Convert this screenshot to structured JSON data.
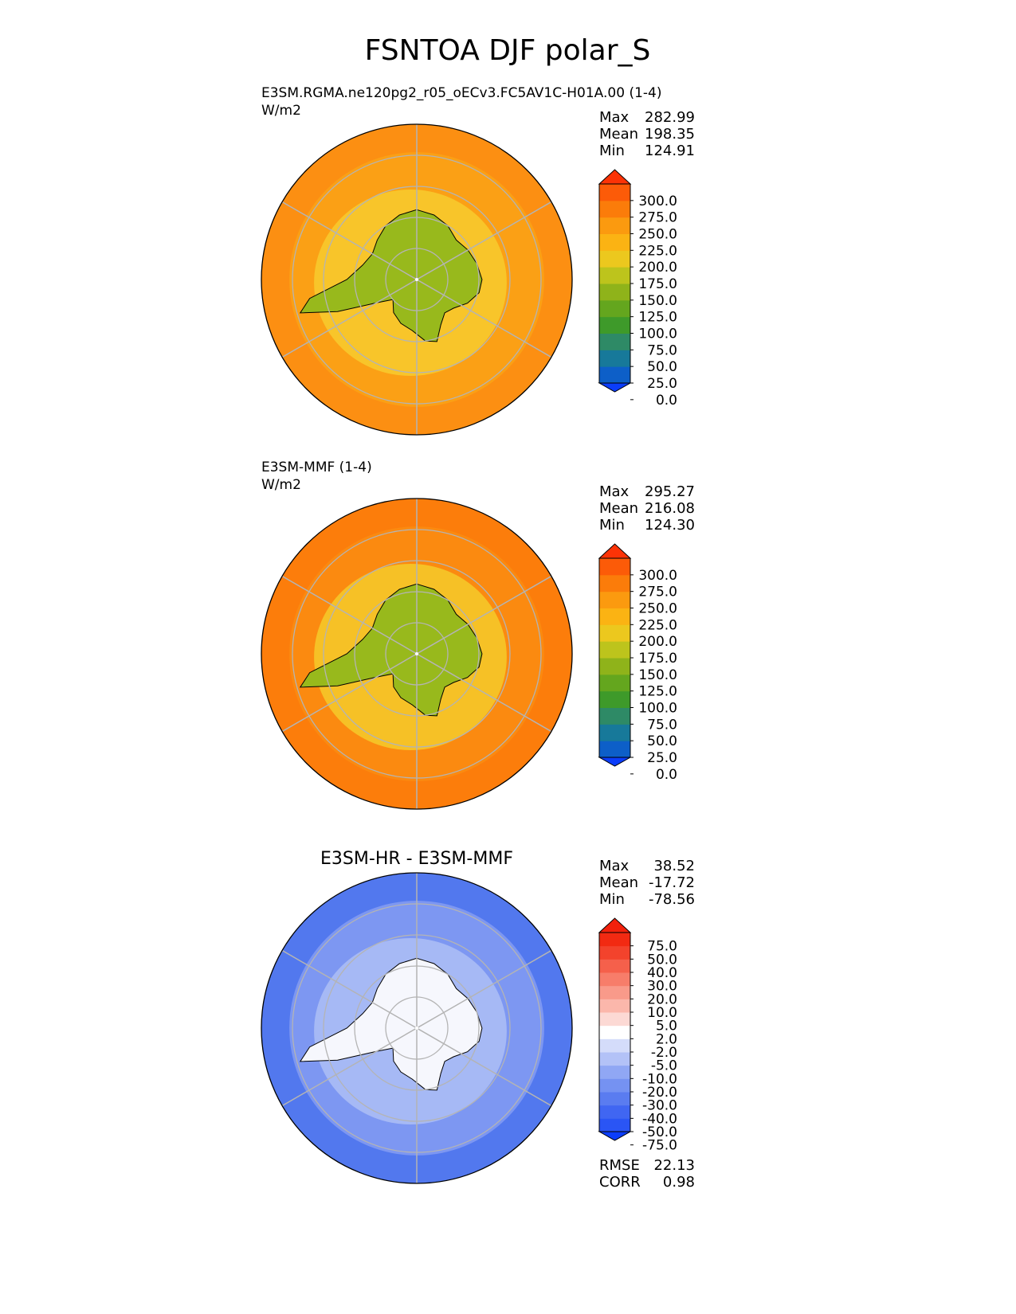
{
  "title": "FSNTOA DJF polar_S",
  "panels": [
    {
      "id": "test",
      "title_left": "E3SM.RGMA.ne120pg2_r05_oECv3.FC5AV1C-H01A.00 (1-4)",
      "units": "W/m2",
      "title_center": "",
      "stats": [
        {
          "label": "Max",
          "value": "282.99"
        },
        {
          "label": "Mean",
          "value": "198.35"
        },
        {
          "label": "Min",
          "value": "124.91"
        }
      ],
      "colorbar": {
        "ticks": [
          "300.0",
          "275.0",
          "250.0",
          "225.0",
          "200.0",
          "175.0",
          "150.0",
          "125.0",
          "100.0",
          "75.0",
          "50.0",
          "25.0",
          "0.0"
        ],
        "colors": [
          "#0b3dfa",
          "#0d5fc8",
          "#17799a",
          "#2e8a66",
          "#3e9a2a",
          "#64a61e",
          "#8fb31a",
          "#bdc41c",
          "#ecc81e",
          "#fbb313",
          "#fb9a0f",
          "#fb7c0a",
          "#fc5b08",
          "#fc3306"
        ]
      },
      "field": {
        "ocean": "#fba015",
        "land": "#98b91c",
        "ring": "#f8c52a",
        "outer": "#fc8f12"
      }
    },
    {
      "id": "reference",
      "title_left": "E3SM-MMF (1-4)",
      "units": "W/m2",
      "title_center": "",
      "stats": [
        {
          "label": "Max",
          "value": "295.27"
        },
        {
          "label": "Mean",
          "value": "216.08"
        },
        {
          "label": "Min",
          "value": "124.30"
        }
      ],
      "colorbar": {
        "ticks": [
          "300.0",
          "275.0",
          "250.0",
          "225.0",
          "200.0",
          "175.0",
          "150.0",
          "125.0",
          "100.0",
          "75.0",
          "50.0",
          "25.0",
          "0.0"
        ],
        "colors": [
          "#0b3dfa",
          "#0d5fc8",
          "#17799a",
          "#2e8a66",
          "#3e9a2a",
          "#64a61e",
          "#8fb31a",
          "#bdc41c",
          "#ecc81e",
          "#fbb313",
          "#fb9a0f",
          "#fb7c0a",
          "#fc5b08",
          "#fc3306"
        ]
      },
      "field": {
        "ocean": "#fb8a10",
        "land": "#98b91c",
        "ring": "#f6c126",
        "outer": "#fc7d0b"
      }
    },
    {
      "id": "diff",
      "title_left": "",
      "units": "",
      "title_center": "E3SM-HR - E3SM-MMF",
      "stats": [
        {
          "label": "Max",
          "value": "38.52"
        },
        {
          "label": "Mean",
          "value": "-17.72"
        },
        {
          "label": "Min",
          "value": "-78.56"
        }
      ],
      "colorbar": {
        "ticks": [
          "75.0",
          "50.0",
          "40.0",
          "30.0",
          "20.0",
          "10.0",
          "5.0",
          "2.0",
          "-2.0",
          "-5.0",
          "-10.0",
          "-20.0",
          "-30.0",
          "-40.0",
          "-50.0",
          "-75.0"
        ],
        "colors": [
          "#0b3dfa",
          "#2a55f5",
          "#4066f2",
          "#5a7cf0",
          "#7592f2",
          "#90a7f4",
          "#b3c2f7",
          "#d4dcfa",
          "#ffffff",
          "#fcd9d4",
          "#fbb7ab",
          "#f99a8a",
          "#f77d6a",
          "#f5604b",
          "#f3432c",
          "#f22a12",
          "#f2210c"
        ]
      },
      "field": {
        "ocean": "#7d97f2",
        "land": "#f6f7fd",
        "ring": "#a6b9f5",
        "outer": "#5278ee"
      },
      "metrics": [
        {
          "label": "RMSE",
          "value": "22.13"
        },
        {
          "label": "CORR",
          "value": "0.98"
        }
      ]
    }
  ]
}
